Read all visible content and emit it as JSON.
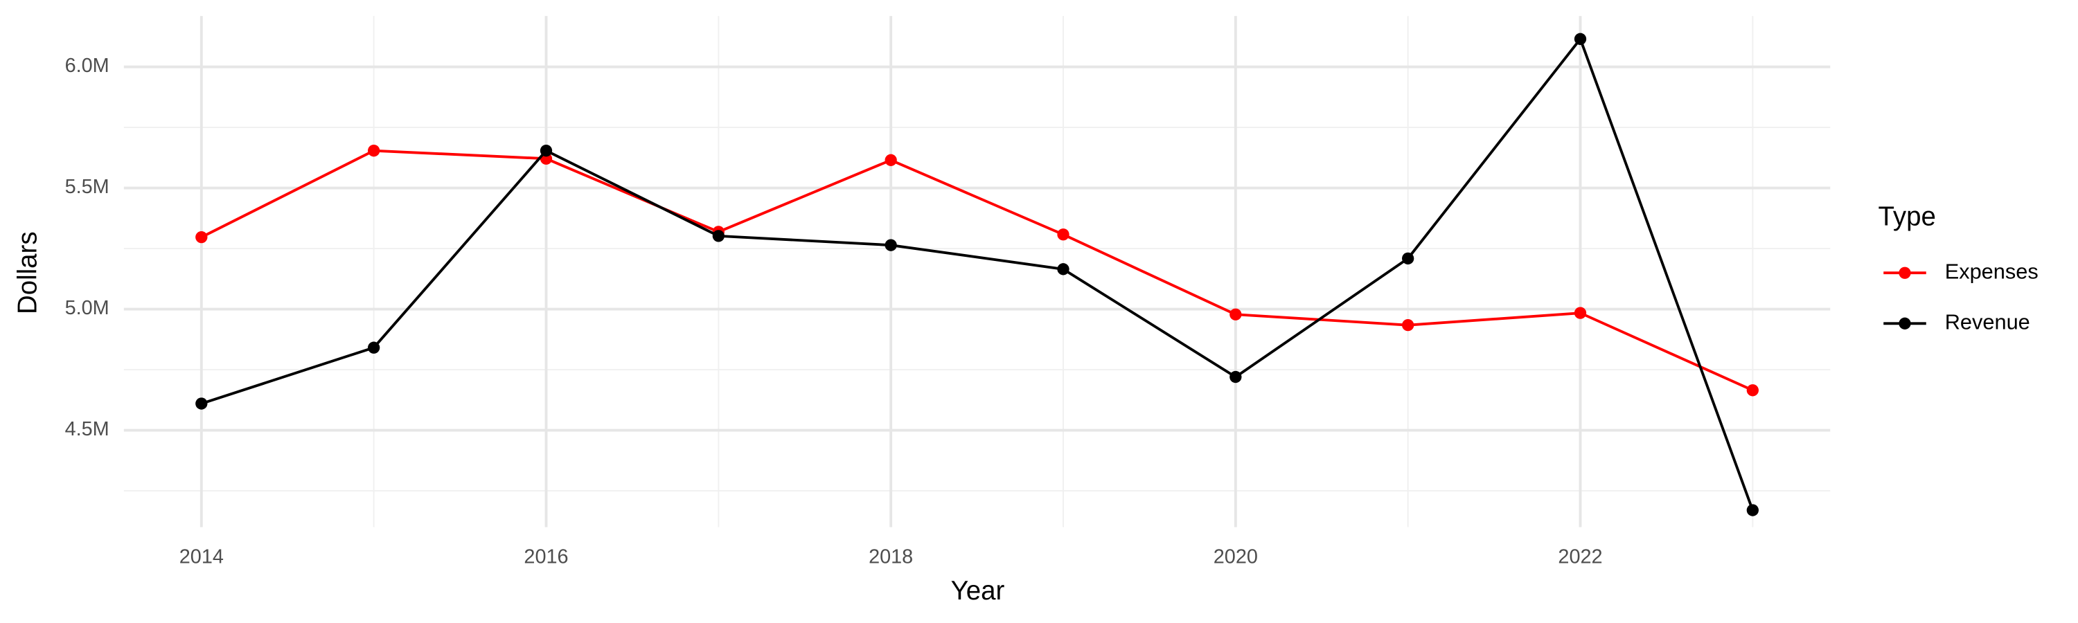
{
  "chart_data": {
    "type": "line",
    "x_label": "Year",
    "y_label": "Dollars",
    "x": [
      2014,
      2015,
      2016,
      2017,
      2018,
      2019,
      2020,
      2021,
      2022,
      2023
    ],
    "series": [
      {
        "name": "Expenses",
        "color": "#ff0000",
        "values": [
          5297000,
          5654000,
          5621000,
          5319000,
          5615000,
          5308000,
          4978000,
          4934000,
          4984000,
          4665000
        ]
      },
      {
        "name": "Revenue",
        "color": "#000000",
        "values": [
          4610000,
          4841000,
          5654000,
          5302000,
          5264000,
          5165000,
          4720000,
          5209000,
          6115000,
          4170000
        ]
      }
    ],
    "xlim": [
      2013.55,
      2023.45
    ],
    "xticks": [
      2014,
      2016,
      2018,
      2020,
      2022
    ],
    "xminor": [
      2015,
      2017,
      2019,
      2021,
      2023
    ],
    "ylim": [
      4100000,
      6210000
    ],
    "yticks": [
      {
        "value": 4500000,
        "label": "4.5M"
      },
      {
        "value": 5000000,
        "label": "5.0M"
      },
      {
        "value": 5500000,
        "label": "5.5M"
      },
      {
        "value": 6000000,
        "label": "6.0M"
      }
    ],
    "yminor": [
      4250000,
      4750000,
      5250000,
      5750000
    ],
    "grid": true,
    "legend_title": "Type",
    "legend_position": "right"
  }
}
